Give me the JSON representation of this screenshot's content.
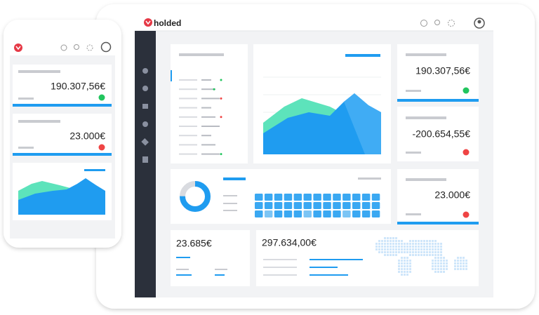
{
  "app": {
    "logo": "holded"
  },
  "phone": {
    "cards": [
      "190.307,56€",
      "23.000€"
    ]
  },
  "desktop": {
    "cards": [
      "190.307,56€",
      "-200.654,55€",
      "23.000€"
    ],
    "bottom_cards": [
      "23.685€",
      "297.634,00€"
    ]
  }
}
